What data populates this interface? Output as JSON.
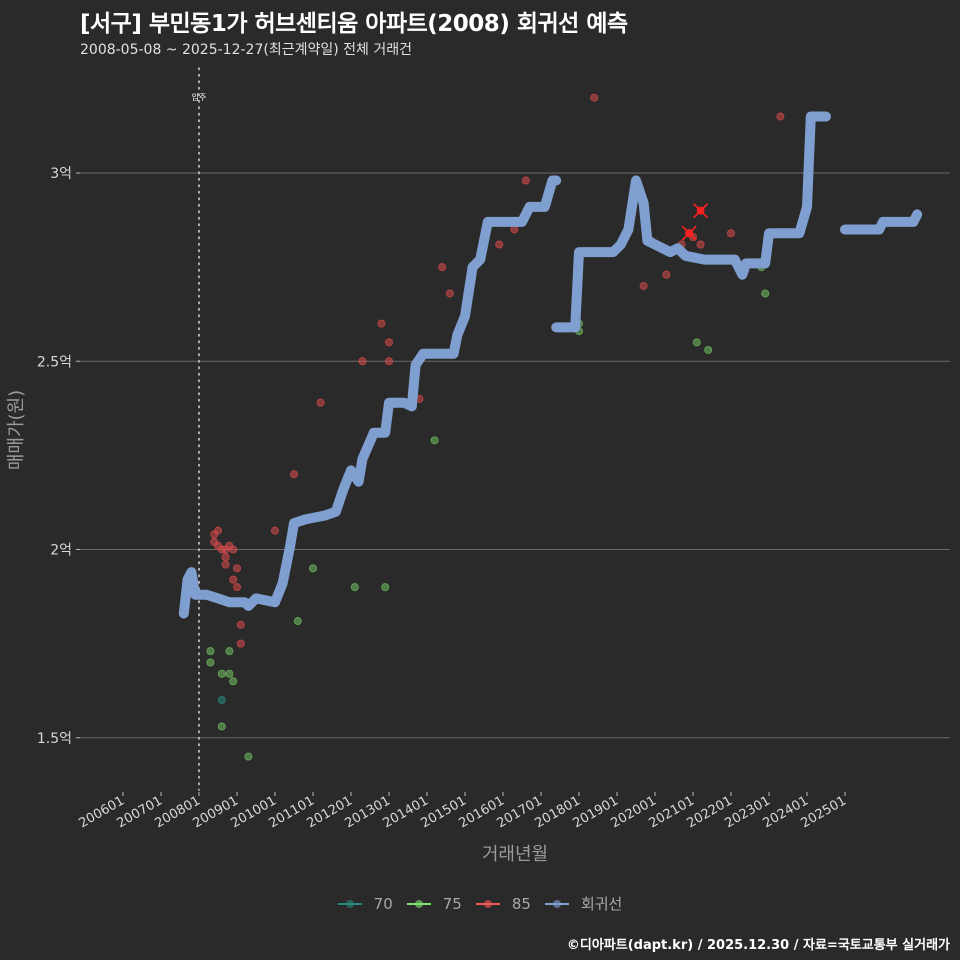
{
  "header": {
    "title": "[서구] 부민동1가 허브센티움 아파트(2008) 회귀선 예측",
    "subtitle": "2008-05-08 ~ 2025-12-27(최근계약일) 전체 거래건"
  },
  "axes": {
    "ylabel": "매매가(원)",
    "xlabel": "거래년월",
    "yticks": [
      "1.5억",
      "2억",
      "2.5억",
      "3억"
    ],
    "xticks": [
      "200601",
      "200701",
      "200801",
      "200901",
      "201001",
      "201101",
      "201201",
      "201301",
      "201401",
      "201501",
      "201601",
      "201701",
      "201801",
      "201901",
      "202001",
      "202101",
      "202201",
      "202301",
      "202401",
      "202501"
    ]
  },
  "annotation": {
    "label": "입주",
    "x": "200801"
  },
  "legend": [
    {
      "label": "70",
      "color": "#2a8a80"
    },
    {
      "label": "75",
      "color": "#7ee06e"
    },
    {
      "label": "85",
      "color": "#f05a5a"
    },
    {
      "label": "회귀선",
      "color": "#7f9fd0"
    }
  ],
  "caption": "©디아파트(dapt.kr) / 2025.12.30 / 자료=국토교통부 실거래가",
  "colors": {
    "background": "#2b2a2b",
    "regression": "#7f9fd0",
    "size70": "#2a8a80",
    "size75": "#6fc060",
    "size85": "#d94a4a",
    "highlight": "#ff2020",
    "grid": "#6a6a6a"
  },
  "chart_data": {
    "type": "scatter",
    "title": "[서구] 부민동1가 허브센티움 아파트(2008) 회귀선 예측",
    "subtitle": "2008-05-08 ~ 2025-12-27(최근계약일) 전체 거래건",
    "xlabel": "거래년월",
    "ylabel": "매매가(원)",
    "y_unit": "억원",
    "ylim": [
      1.38,
      3.28
    ],
    "xlim": [
      2004.9,
      2027.8
    ],
    "grid": "horizontal major",
    "legend_position": "bottom",
    "series": [
      {
        "name": "70",
        "type": "scatter",
        "points": [
          [
            2008.6,
            1.6
          ]
        ]
      },
      {
        "name": "75",
        "type": "scatter",
        "points": [
          [
            2008.3,
            1.73
          ],
          [
            2008.3,
            1.7
          ],
          [
            2008.6,
            1.67
          ],
          [
            2008.8,
            1.67
          ],
          [
            2008.8,
            1.73
          ],
          [
            2008.9,
            1.65
          ],
          [
            2008.6,
            1.53
          ],
          [
            2009.3,
            1.45
          ],
          [
            2010.6,
            1.81
          ],
          [
            2011.0,
            1.95
          ],
          [
            2012.1,
            1.9
          ],
          [
            2012.9,
            1.9
          ],
          [
            2014.2,
            2.29
          ],
          [
            2018.0,
            2.6
          ],
          [
            2018.0,
            2.58
          ],
          [
            2021.1,
            2.55
          ],
          [
            2021.4,
            2.53
          ],
          [
            2022.8,
            2.75
          ],
          [
            2022.9,
            2.68
          ]
        ]
      },
      {
        "name": "85",
        "type": "scatter",
        "points": [
          [
            2008.4,
            2.04
          ],
          [
            2008.5,
            2.05
          ],
          [
            2008.4,
            2.02
          ],
          [
            2008.5,
            2.01
          ],
          [
            2008.6,
            2.0
          ],
          [
            2008.7,
            2.0
          ],
          [
            2008.8,
            2.01
          ],
          [
            2008.9,
            2.0
          ],
          [
            2008.7,
            1.98
          ],
          [
            2008.7,
            1.96
          ],
          [
            2009.0,
            1.95
          ],
          [
            2008.9,
            1.92
          ],
          [
            2009.0,
            1.9
          ],
          [
            2009.1,
            1.8
          ],
          [
            2009.1,
            1.75
          ],
          [
            2010.0,
            2.05
          ],
          [
            2010.8,
            2.08
          ],
          [
            2011.2,
            2.39
          ],
          [
            2010.5,
            2.2
          ],
          [
            2012.3,
            2.5
          ],
          [
            2012.8,
            2.6
          ],
          [
            2013.0,
            2.55
          ],
          [
            2013.0,
            2.5
          ],
          [
            2013.8,
            2.4
          ],
          [
            2014.4,
            2.75
          ],
          [
            2014.6,
            2.68
          ],
          [
            2015.9,
            2.81
          ],
          [
            2016.3,
            2.85
          ],
          [
            2016.6,
            2.98
          ],
          [
            2018.4,
            3.2
          ],
          [
            2019.4,
            2.89
          ],
          [
            2019.9,
            2.82
          ],
          [
            2019.7,
            2.7
          ],
          [
            2020.3,
            2.73
          ],
          [
            2020.7,
            2.81
          ],
          [
            2020.9,
            2.84
          ],
          [
            2021.0,
            2.83
          ],
          [
            2021.2,
            2.81
          ],
          [
            2021.6,
            2.77
          ],
          [
            2022.0,
            2.84
          ],
          [
            2023.3,
            3.15
          ]
        ]
      },
      {
        "name": "85-highlight",
        "type": "scatter",
        "marker": "x",
        "points": [
          [
            2020.9,
            2.84
          ],
          [
            2021.2,
            2.9
          ]
        ]
      },
      {
        "name": "회귀선",
        "type": "line",
        "segments": [
          [
            [
              2007.6,
              1.83
            ],
            [
              2007.7,
              1.92
            ],
            [
              2007.8,
              1.94
            ],
            [
              2007.9,
              1.88
            ],
            [
              2008.2,
              1.88
            ],
            [
              2008.5,
              1.87
            ],
            [
              2008.8,
              1.86
            ],
            [
              2009.2,
              1.86
            ],
            [
              2009.3,
              1.85
            ],
            [
              2009.5,
              1.87
            ],
            [
              2010.0,
              1.86
            ],
            [
              2010.2,
              1.91
            ],
            [
              2010.4,
              2.01
            ],
            [
              2010.5,
              2.07
            ],
            [
              2010.8,
              2.08
            ],
            [
              2011.3,
              2.09
            ],
            [
              2011.6,
              2.1
            ],
            [
              2011.8,
              2.16
            ],
            [
              2012.0,
              2.21
            ],
            [
              2012.2,
              2.18
            ],
            [
              2012.3,
              2.24
            ],
            [
              2012.6,
              2.31
            ],
            [
              2012.9,
              2.31
            ],
            [
              2013.0,
              2.39
            ],
            [
              2013.4,
              2.39
            ],
            [
              2013.6,
              2.38
            ],
            [
              2013.7,
              2.49
            ],
            [
              2013.9,
              2.52
            ],
            [
              2014.7,
              2.52
            ],
            [
              2014.8,
              2.57
            ],
            [
              2015.0,
              2.62
            ],
            [
              2015.2,
              2.75
            ],
            [
              2015.4,
              2.77
            ],
            [
              2015.6,
              2.87
            ],
            [
              2016.5,
              2.87
            ],
            [
              2016.7,
              2.91
            ],
            [
              2017.1,
              2.91
            ],
            [
              2017.3,
              2.98
            ],
            [
              2017.4,
              2.98
            ]
          ],
          [
            [
              2017.4,
              2.59
            ],
            [
              2017.9,
              2.59
            ],
            [
              2018.0,
              2.79
            ],
            [
              2018.9,
              2.79
            ],
            [
              2019.1,
              2.81
            ],
            [
              2019.3,
              2.85
            ],
            [
              2019.5,
              2.98
            ],
            [
              2019.7,
              2.92
            ],
            [
              2019.8,
              2.82
            ],
            [
              2020.0,
              2.81
            ],
            [
              2020.4,
              2.79
            ],
            [
              2020.6,
              2.8
            ],
            [
              2020.8,
              2.78
            ],
            [
              2021.3,
              2.77
            ],
            [
              2022.1,
              2.77
            ],
            [
              2022.3,
              2.73
            ],
            [
              2022.4,
              2.76
            ],
            [
              2022.9,
              2.76
            ],
            [
              2023.0,
              2.84
            ],
            [
              2023.8,
              2.84
            ],
            [
              2024.0,
              2.91
            ],
            [
              2024.1,
              3.15
            ],
            [
              2024.5,
              3.15
            ]
          ],
          [
            [
              2025.0,
              2.85
            ],
            [
              2025.9,
              2.85
            ],
            [
              2026.0,
              2.87
            ],
            [
              2026.8,
              2.87
            ],
            [
              2026.9,
              2.89
            ]
          ]
        ]
      }
    ]
  }
}
